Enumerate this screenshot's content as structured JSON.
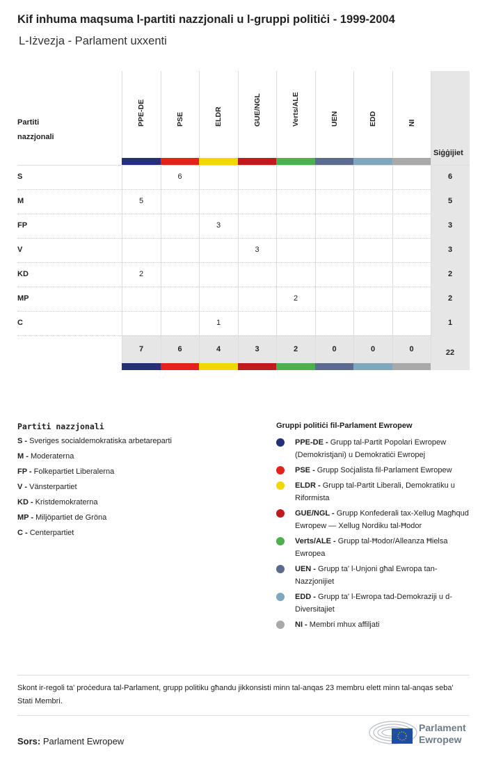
{
  "title": "Kif inhuma maqsuma l-partiti nazzjonali u l-gruppi politiċi - 1999-2004",
  "subtitle": "L-Iżvezja - Parlament uxxenti",
  "chart_data": {
    "type": "table",
    "row_header": "Partiti nazzjonali",
    "total_header": "Siġġijiet",
    "columns": [
      {
        "name": "PPE-DE",
        "color": "#24317a"
      },
      {
        "name": "PSE",
        "color": "#e2231a"
      },
      {
        "name": "ELDR",
        "color": "#f0d800"
      },
      {
        "name": "GUE/NGL",
        "color": "#bf1b1f"
      },
      {
        "name": "Verts/ALE",
        "color": "#4caf50"
      },
      {
        "name": "UEN",
        "color": "#5a6a90"
      },
      {
        "name": "EDD",
        "color": "#7fa8bf"
      },
      {
        "name": "NI",
        "color": "#a9a9a9"
      }
    ],
    "rows": [
      {
        "party": "S",
        "values": [
          null,
          6,
          null,
          null,
          null,
          null,
          null,
          null
        ],
        "total": 6
      },
      {
        "party": "M",
        "values": [
          5,
          null,
          null,
          null,
          null,
          null,
          null,
          null
        ],
        "total": 5
      },
      {
        "party": "FP",
        "values": [
          null,
          null,
          3,
          null,
          null,
          null,
          null,
          null
        ],
        "total": 3
      },
      {
        "party": "V",
        "values": [
          null,
          null,
          null,
          3,
          null,
          null,
          null,
          null
        ],
        "total": 3
      },
      {
        "party": "KD",
        "values": [
          2,
          null,
          null,
          null,
          null,
          null,
          null,
          null
        ],
        "total": 2
      },
      {
        "party": "MP",
        "values": [
          null,
          null,
          null,
          null,
          2,
          null,
          null,
          null
        ],
        "total": 2
      },
      {
        "party": "C",
        "values": [
          null,
          null,
          1,
          null,
          null,
          null,
          null,
          null
        ],
        "total": 1
      }
    ],
    "column_totals": [
      7,
      6,
      4,
      3,
      2,
      0,
      0,
      0
    ],
    "grand_total": 22
  },
  "legend_parties": {
    "title": "Partiti nazzjonali",
    "items": [
      {
        "abbr": "S",
        "name": "Sveriges socialdemokratiska arbetareparti"
      },
      {
        "abbr": "M",
        "name": "Moderaterna"
      },
      {
        "abbr": "FP",
        "name": "Folkepartiet Liberalerna"
      },
      {
        "abbr": "V",
        "name": "Vänsterpartiet"
      },
      {
        "abbr": "KD",
        "name": "Kristdemokraterna"
      },
      {
        "abbr": "MP",
        "name": "Miljöpartiet de Gröna"
      },
      {
        "abbr": "C",
        "name": "Centerpartiet"
      }
    ]
  },
  "legend_groups": {
    "title": "Gruppi politiċi fil-Parlament Ewropew",
    "items": [
      {
        "abbr": "PPE-DE",
        "name": "Grupp tal-Partit Popolari Ewropew (Demokristjani) u Demokratiċi Ewropej"
      },
      {
        "abbr": "PSE",
        "name": "Grupp Soċjalista fil-Parlament Ewropew"
      },
      {
        "abbr": "ELDR",
        "name": "Grupp tal-Partit Liberali, Demokratiku u Riformista"
      },
      {
        "abbr": "GUE/NGL",
        "name": "Grupp Konfederali tax-Xellug Magħqud Ewropew — Xellug Nordiku tal-Ħodor"
      },
      {
        "abbr": "Verts/ALE",
        "name": "Grupp tal-Ħodor/Alleanza Ħielsa Ewropea"
      },
      {
        "abbr": "UEN",
        "name": "Grupp ta' l-Unjoni għal Ewropa tan-Nazzjonijiet"
      },
      {
        "abbr": "EDD",
        "name": "Grupp ta' l-Ewropa tad-Demokraziji u d-Diversitajiet"
      },
      {
        "abbr": "NI",
        "name": "Membri mhux affiljati"
      }
    ]
  },
  "note": "Skont ir-regoli ta' proċedura tal-Parlament, grupp politiku għandu jikkonsisti minn tal-anqas 23 membru elett minn tal-anqas seba' Stati Membri.",
  "source": {
    "label": "Sors:",
    "value": "Parlament Ewropew"
  },
  "logo": {
    "line1": "Parlament",
    "line2": "Ewropew"
  }
}
